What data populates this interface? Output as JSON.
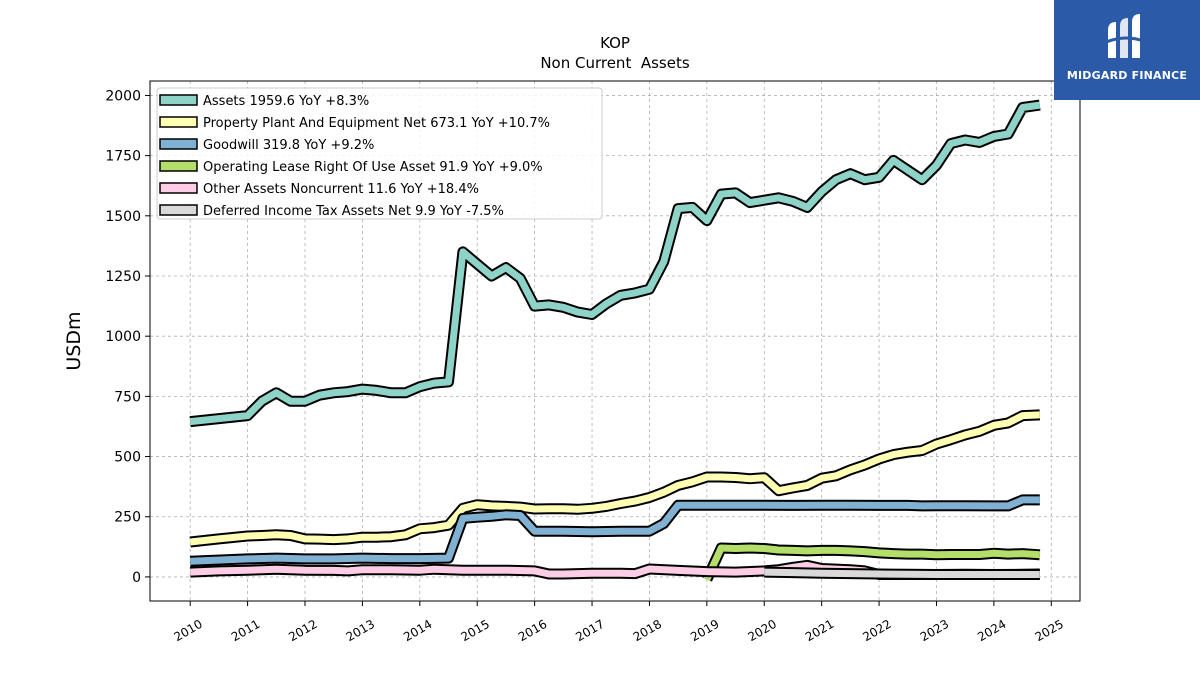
{
  "brand": {
    "name": "MIDGARD FINANCE",
    "bg": "#2a5aa8"
  },
  "chart_data": {
    "type": "line",
    "title": "KOP",
    "subtitle": "Non Current  Assets",
    "ylabel": "USDm",
    "xlabel": "",
    "xlim": [
      2009.3,
      2025.5
    ],
    "ylim": [
      -100,
      2060
    ],
    "yticks": [
      0,
      250,
      500,
      750,
      1000,
      1250,
      1500,
      1750,
      2000
    ],
    "xticks": [
      2010,
      2011,
      2012,
      2013,
      2014,
      2015,
      2016,
      2017,
      2018,
      2019,
      2020,
      2021,
      2022,
      2023,
      2024,
      2025
    ],
    "grid": true,
    "legend_position": "top-left",
    "series": [
      {
        "name": "Assets",
        "legend_label": "Assets  1959.6 YoY +8.3%",
        "color": "#8dd3c7",
        "x": [
          2010.0,
          2011.0,
          2011.25,
          2011.5,
          2011.75,
          2012.0,
          2012.25,
          2012.5,
          2012.75,
          2013.0,
          2013.25,
          2013.5,
          2013.75,
          2014.0,
          2014.25,
          2014.5,
          2014.75,
          2015.0,
          2015.25,
          2015.5,
          2015.75,
          2016.0,
          2016.25,
          2016.5,
          2016.75,
          2017.0,
          2017.25,
          2017.5,
          2017.75,
          2018.0,
          2018.25,
          2018.5,
          2018.75,
          2019.0,
          2019.25,
          2019.5,
          2019.75,
          2020.0,
          2020.25,
          2020.5,
          2020.75,
          2021.0,
          2021.25,
          2021.5,
          2021.75,
          2022.0,
          2022.25,
          2022.5,
          2022.75,
          2023.0,
          2023.25,
          2023.5,
          2023.75,
          2024.0,
          2024.25,
          2024.5,
          2024.8
        ],
        "values": [
          645,
          670,
          730,
          765,
          730,
          730,
          755,
          765,
          770,
          780,
          775,
          765,
          765,
          790,
          805,
          810,
          1350,
          1300,
          1250,
          1285,
          1240,
          1125,
          1130,
          1120,
          1100,
          1090,
          1135,
          1170,
          1180,
          1195,
          1310,
          1530,
          1535,
          1480,
          1590,
          1595,
          1555,
          1565,
          1575,
          1560,
          1535,
          1600,
          1650,
          1675,
          1650,
          1660,
          1730,
          1690,
          1650,
          1710,
          1800,
          1815,
          1805,
          1830,
          1840,
          1950,
          1960
        ]
      },
      {
        "name": "Property Plant And Equipment Net",
        "legend_label": "Property Plant And Equipment Net  673.1 YoY +10.7%",
        "color": "#ffffb3",
        "x": [
          2010.0,
          2010.5,
          2011.0,
          2011.25,
          2011.5,
          2011.75,
          2012.0,
          2012.25,
          2012.5,
          2012.75,
          2013.0,
          2013.25,
          2013.5,
          2013.75,
          2014.0,
          2014.25,
          2014.5,
          2014.75,
          2015.0,
          2015.25,
          2015.5,
          2015.75,
          2016.0,
          2016.25,
          2016.5,
          2016.75,
          2017.0,
          2017.25,
          2017.5,
          2017.75,
          2018.0,
          2018.25,
          2018.5,
          2018.75,
          2019.0,
          2019.25,
          2019.5,
          2019.75,
          2020.0,
          2020.25,
          2020.5,
          2020.75,
          2021.0,
          2021.25,
          2021.5,
          2021.75,
          2022.0,
          2022.25,
          2022.5,
          2022.75,
          2023.0,
          2023.25,
          2023.5,
          2023.75,
          2024.0,
          2024.25,
          2024.5,
          2024.8
        ],
        "values": [
          145,
          158,
          170,
          172,
          175,
          172,
          158,
          157,
          155,
          158,
          165,
          165,
          167,
          175,
          200,
          205,
          215,
          285,
          300,
          295,
          293,
          290,
          282,
          283,
          283,
          281,
          285,
          293,
          305,
          315,
          330,
          352,
          380,
          395,
          415,
          415,
          413,
          408,
          412,
          358,
          370,
          380,
          410,
          420,
          445,
          465,
          490,
          508,
          518,
          525,
          552,
          570,
          590,
          605,
          630,
          640,
          670,
          673
        ]
      },
      {
        "name": "Goodwill",
        "legend_label": "Goodwill  319.8 YoY +9.2%",
        "color": "#80b1d3",
        "x": [
          2010.0,
          2011.0,
          2011.5,
          2012.0,
          2012.5,
          2013.0,
          2013.5,
          2014.0,
          2014.5,
          2014.75,
          2015.0,
          2015.25,
          2015.5,
          2015.75,
          2016.0,
          2016.5,
          2017.0,
          2017.5,
          2018.0,
          2018.25,
          2018.5,
          2019.0,
          2019.5,
          2020.0,
          2020.5,
          2021.0,
          2021.5,
          2022.0,
          2022.5,
          2022.75,
          2023.0,
          2023.5,
          2024.0,
          2024.25,
          2024.5,
          2024.8
        ],
        "values": [
          65,
          75,
          78,
          75,
          75,
          78,
          76,
          76,
          78,
          243,
          248,
          252,
          258,
          255,
          190,
          190,
          188,
          190,
          190,
          222,
          298,
          298,
          298,
          298,
          297,
          298,
          298,
          297,
          297,
          295,
          296,
          296,
          295,
          295,
          320,
          320
        ]
      },
      {
        "name": "Operating Lease Right Of Use Asset",
        "legend_label": "Operating Lease Right Of Use Asset  91.9 YoY +9.0%",
        "color": "#b3de69",
        "x": [
          2019.0,
          2019.25,
          2019.5,
          2019.75,
          2020.0,
          2020.25,
          2020.5,
          2020.75,
          2021.0,
          2021.25,
          2021.5,
          2021.75,
          2022.0,
          2022.25,
          2022.5,
          2022.75,
          2023.0,
          2023.25,
          2023.5,
          2023.75,
          2024.0,
          2024.25,
          2024.5,
          2024.8
        ],
        "values": [
          -10,
          120,
          118,
          120,
          118,
          112,
          110,
          108,
          110,
          110,
          108,
          105,
          100,
          97,
          95,
          95,
          92,
          93,
          93,
          93,
          98,
          95,
          97,
          92
        ]
      },
      {
        "name": "Other Assets Noncurrent",
        "legend_label": "Other Assets Noncurrent  11.6 YoY +18.4%",
        "color": "#fccde5",
        "x": [
          2010.0,
          2010.5,
          2011.0,
          2011.25,
          2011.5,
          2011.75,
          2012.0,
          2012.5,
          2012.75,
          2013.0,
          2013.5,
          2014.0,
          2014.25,
          2014.5,
          2014.75,
          2015.0,
          2015.5,
          2016.0,
          2016.25,
          2016.5,
          2017.0,
          2017.5,
          2017.75,
          2018.0,
          2018.5,
          2019.0,
          2019.5,
          2020.0,
          2020.25,
          2020.5,
          2020.75,
          2021.0,
          2021.5,
          2021.75,
          2022.0,
          2022.5,
          2023.0,
          2023.5,
          2024.0,
          2024.5,
          2024.8
        ],
        "values": [
          20,
          25,
          28,
          30,
          32,
          30,
          28,
          27,
          25,
          30,
          30,
          28,
          32,
          30,
          28,
          28,
          28,
          25,
          12,
          12,
          15,
          15,
          14,
          33,
          27,
          22,
          20,
          25,
          30,
          40,
          48,
          35,
          30,
          25,
          10,
          10,
          10,
          11,
          10,
          11,
          12
        ]
      },
      {
        "name": "Deferred Income Tax Assets Net",
        "legend_label": "Deferred Income Tax Assets Net  9.9 YoY -7.5%",
        "color": "#d9d9d9",
        "x": [
          2020.0,
          2020.5,
          2021.0,
          2021.5,
          2022.0,
          2022.5,
          2023.0,
          2023.5,
          2024.0,
          2024.5,
          2024.8
        ],
        "values": [
          20,
          18,
          15,
          14,
          12,
          11,
          10,
          10,
          10,
          10,
          10
        ]
      }
    ]
  }
}
